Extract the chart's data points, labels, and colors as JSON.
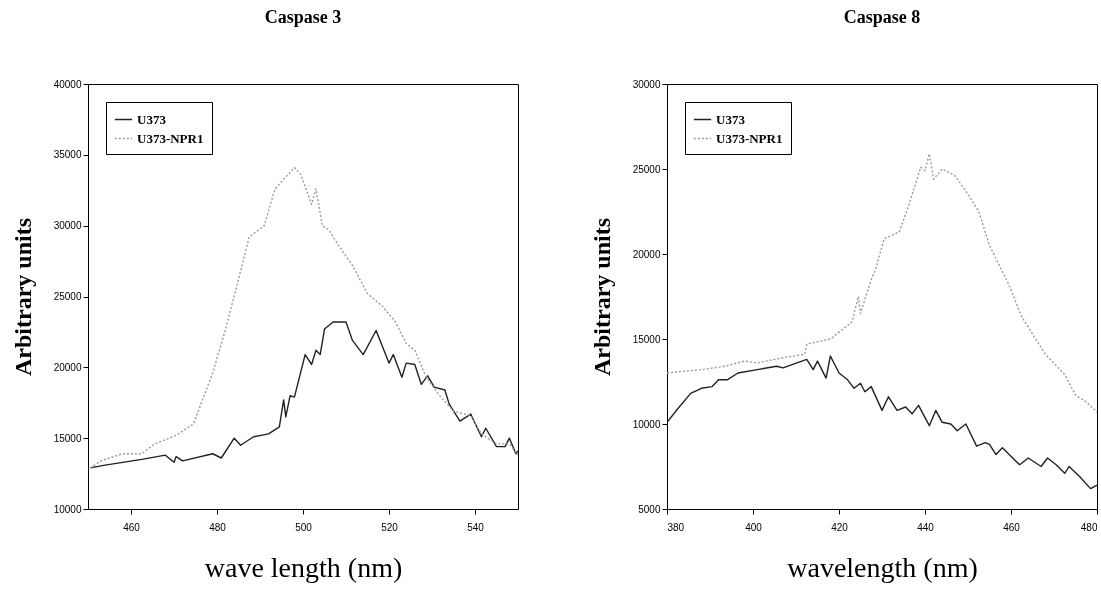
{
  "chart_data": [
    {
      "type": "line",
      "title": "Caspase 3",
      "xlabel": "wave length (nm)",
      "ylabel": "Arbitrary units",
      "xlim": [
        450,
        550
      ],
      "xticks": [
        460,
        480,
        500,
        520,
        540
      ],
      "ylim": [
        10000,
        40000
      ],
      "yticks": [
        10000,
        15000,
        20000,
        25000,
        30000,
        35000,
        40000
      ],
      "legend": "top left",
      "series": [
        {
          "name": "U373",
          "color": "#222222",
          "line_style": "solid",
          "x": [
            450.5,
            454,
            462.5,
            468,
            470,
            470.5,
            472,
            479,
            481,
            484,
            485.5,
            488.5,
            492,
            494.5,
            495.5,
            496,
            497,
            498,
            500.5,
            502,
            503,
            504,
            505,
            507,
            510,
            511.5,
            514,
            517,
            520,
            521,
            523,
            524,
            526,
            527.5,
            529,
            530.5,
            533,
            534,
            536.5,
            539,
            541.5,
            542.5,
            545,
            547,
            548,
            549.5,
            550
          ],
          "values": [
            12900,
            13100,
            13500,
            13800,
            13300,
            13700,
            13400,
            13900,
            13600,
            15000,
            14500,
            15100,
            15300,
            15800,
            17700,
            16500,
            18000,
            17900,
            20900,
            20200,
            21200,
            20900,
            22700,
            23200,
            23200,
            21900,
            20900,
            22600,
            20300,
            20900,
            19300,
            20300,
            20200,
            18800,
            19400,
            18600,
            18400,
            17400,
            16200,
            16700,
            15100,
            15700,
            14400,
            14400,
            15000,
            13900,
            14100
          ]
        },
        {
          "name": "U373-NPR1",
          "color": "#9a9a9a",
          "line_style": "dotted",
          "x": [
            450.5,
            453,
            458,
            462.5,
            465.5,
            470.5,
            474.5,
            476.5,
            479,
            482,
            485.5,
            487.5,
            491,
            493.5,
            498,
            499.5,
            502,
            503,
            504.5,
            506,
            508.5,
            511.5,
            515,
            518.5,
            521.5,
            524,
            526,
            528.5,
            531.5,
            535,
            539,
            541.5,
            545,
            548,
            550
          ],
          "values": [
            12900,
            13400,
            13900,
            13900,
            14600,
            15200,
            16000,
            17600,
            19600,
            22700,
            26800,
            29200,
            30000,
            32600,
            34100,
            33600,
            31500,
            32600,
            30000,
            29700,
            28500,
            27200,
            25200,
            24300,
            23200,
            21700,
            21200,
            19400,
            18100,
            16900,
            16600,
            15300,
            14600,
            14600,
            13800
          ]
        }
      ]
    },
    {
      "type": "line",
      "title": "Caspase 8",
      "xlabel": "wavelength (nm)",
      "ylabel": "Arbitrary units",
      "xlim": [
        380,
        480
      ],
      "xticks": [
        380,
        400,
        420,
        440,
        460,
        480
      ],
      "ylim": [
        5000,
        30000
      ],
      "yticks": [
        5000,
        10000,
        15000,
        20000,
        25000,
        30000
      ],
      "legend": "top left",
      "series": [
        {
          "name": "U373",
          "color": "#222222",
          "line_style": "solid",
          "x": [
            380,
            382.5,
            385.5,
            388,
            390.5,
            392,
            394,
            396.5,
            401,
            405.5,
            407,
            412.5,
            414,
            415,
            417,
            418,
            420,
            422,
            423.5,
            425,
            426,
            427.5,
            430,
            431.5,
            433.5,
            435.5,
            437,
            438.5,
            441,
            442.5,
            444,
            446,
            447.5,
            449.5,
            452,
            454,
            455,
            456.5,
            458,
            462,
            464,
            467,
            468.5,
            470.5,
            472.5,
            473.5,
            476,
            478.5,
            480
          ],
          "values": [
            10100,
            10900,
            11800,
            12100,
            12200,
            12600,
            12600,
            13000,
            13200,
            13400,
            13300,
            13800,
            13200,
            13700,
            12700,
            14000,
            13000,
            12600,
            12100,
            12400,
            11900,
            12200,
            10800,
            11600,
            10800,
            11000,
            10600,
            11100,
            9900,
            10800,
            10100,
            10000,
            9600,
            10000,
            8700,
            8900,
            8800,
            8200,
            8600,
            7600,
            8000,
            7500,
            8000,
            7600,
            7100,
            7500,
            6900,
            6200,
            6400
          ]
        },
        {
          "name": "U373-NPR1",
          "color": "#9a9a9a",
          "line_style": "dotted",
          "x": [
            380,
            388,
            393.5,
            398,
            401,
            407,
            412,
            412.5,
            418,
            423,
            424.5,
            425,
            427.5,
            428.5,
            430.5,
            434,
            436,
            439,
            440,
            441,
            442,
            444,
            447,
            449.5,
            452.5,
            455,
            459.5,
            462.5,
            468,
            472.5,
            475,
            477.5,
            480
          ],
          "values": [
            13000,
            13200,
            13400,
            13700,
            13600,
            13900,
            14100,
            14700,
            15000,
            16000,
            17500,
            16500,
            18500,
            19100,
            20900,
            21300,
            22700,
            25100,
            24900,
            25900,
            24400,
            25000,
            24600,
            23700,
            22500,
            20500,
            18200,
            16300,
            14100,
            12900,
            11700,
            11300,
            10700
          ]
        }
      ]
    }
  ]
}
